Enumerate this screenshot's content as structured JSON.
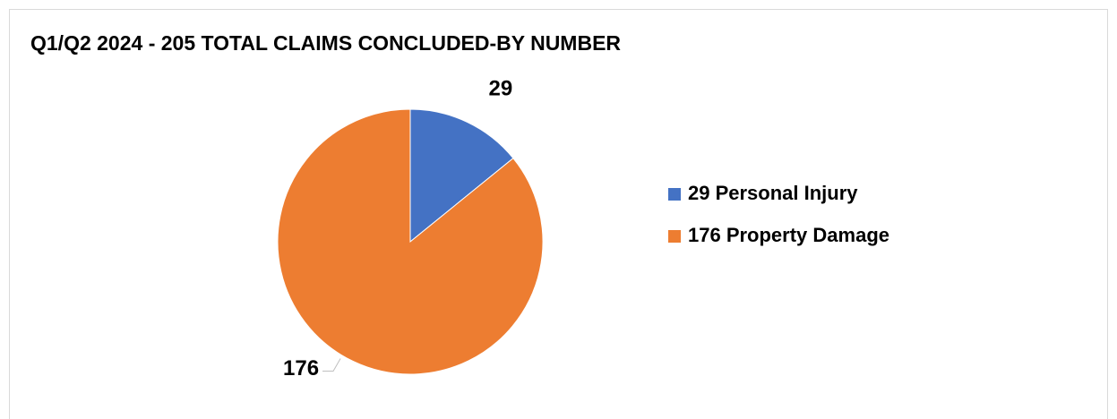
{
  "chart_data": {
    "type": "pie",
    "title": "Q1/Q2 2024 - 205 TOTAL CLAIMS CONCLUDED-BY NUMBER",
    "categories": [
      "29 Personal Injury",
      "176 Property Damage"
    ],
    "values": [
      29,
      176
    ],
    "colors": [
      "#4472c4",
      "#ed7d31"
    ],
    "legend": "right"
  }
}
